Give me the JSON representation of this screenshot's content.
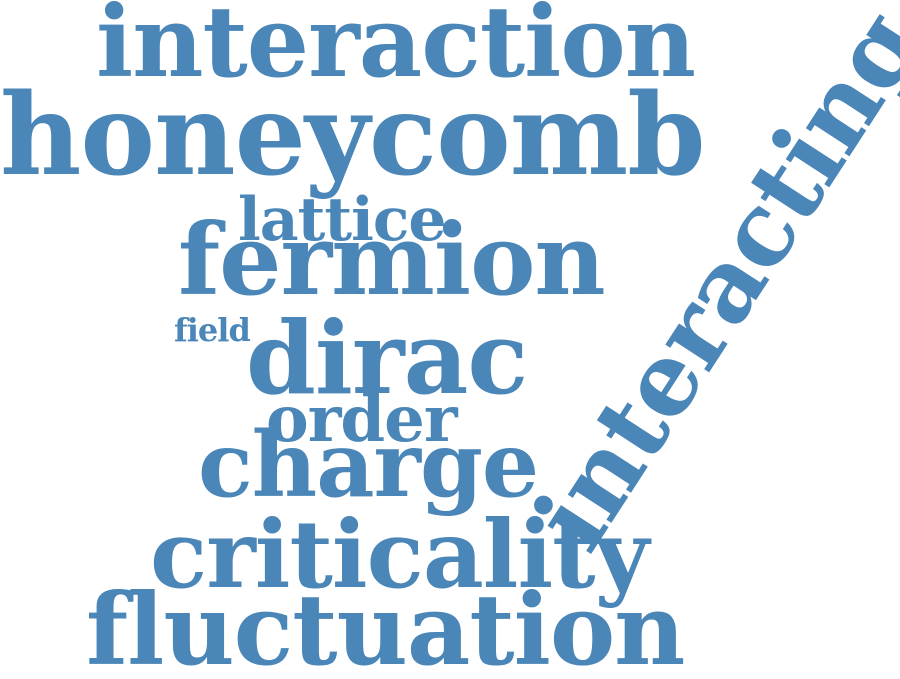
{
  "cloud": {
    "color": "#4a86b8",
    "words": {
      "interaction": "interaction",
      "honeycomb": "honeycomb",
      "lattice": "lattice",
      "fermion": "fermion",
      "field": "field",
      "dirac": "dirac",
      "order": "order",
      "charge": "charge",
      "criticality": "criticality",
      "fluctuation": "fluctuation",
      "interacting": "interacting"
    }
  }
}
